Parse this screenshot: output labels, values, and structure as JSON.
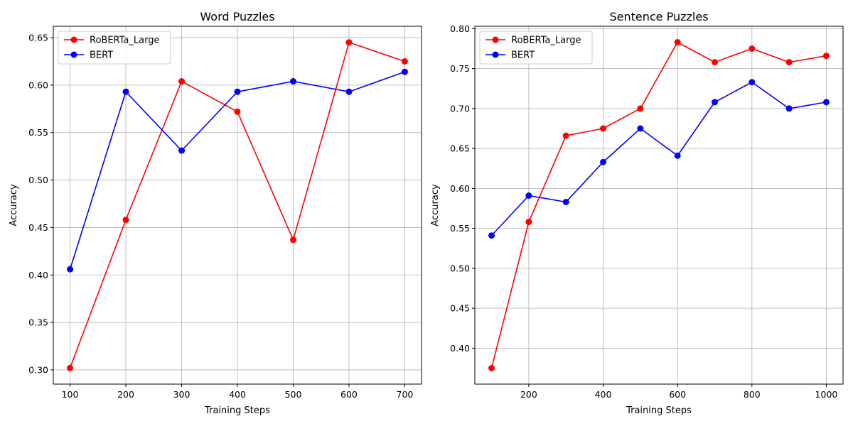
{
  "chart_data": [
    {
      "type": "line",
      "title": "Word Puzzles",
      "xlabel": "Training Steps",
      "ylabel": "Accuracy",
      "x": [
        100,
        200,
        300,
        400,
        500,
        600,
        700
      ],
      "xlim": [
        70,
        730
      ],
      "ylim": [
        0.285,
        0.662
      ],
      "xticks": [
        100,
        200,
        300,
        400,
        500,
        600,
        700
      ],
      "yticks": [
        0.3,
        0.35,
        0.4,
        0.45,
        0.5,
        0.55,
        0.6,
        0.65
      ],
      "ytick_decimals": 2,
      "grid": true,
      "legend_position": "top-left",
      "series": [
        {
          "name": "RoBERTa_Large",
          "color": "#ff0000",
          "marker": "circle",
          "values": [
            0.302,
            0.458,
            0.604,
            0.572,
            0.437,
            0.645,
            0.625
          ]
        },
        {
          "name": "BERT",
          "color": "#0000ff",
          "marker": "circle",
          "values": [
            0.406,
            0.593,
            0.531,
            0.593,
            0.604,
            0.593,
            0.614
          ]
        }
      ]
    },
    {
      "type": "line",
      "title": "Sentence Puzzles",
      "xlabel": "Training Steps",
      "ylabel": "Accuracy",
      "x": [
        100,
        200,
        300,
        400,
        500,
        600,
        700,
        800,
        900,
        1000
      ],
      "xlim": [
        55,
        1045
      ],
      "ylim": [
        0.355,
        0.803
      ],
      "xticks": [
        200,
        400,
        600,
        800,
        1000
      ],
      "yticks": [
        0.4,
        0.45,
        0.5,
        0.55,
        0.6,
        0.65,
        0.7,
        0.75,
        0.8
      ],
      "ytick_decimals": 2,
      "grid": true,
      "legend_position": "top-left",
      "series": [
        {
          "name": "RoBERTa_Large",
          "color": "#ff0000",
          "marker": "circle",
          "values": [
            0.375,
            0.558,
            0.666,
            0.675,
            0.7,
            0.783,
            0.758,
            0.775,
            0.758,
            0.766
          ]
        },
        {
          "name": "BERT",
          "color": "#0000ff",
          "marker": "circle",
          "values": [
            0.541,
            0.591,
            0.583,
            0.633,
            0.675,
            0.641,
            0.708,
            0.733,
            0.7,
            0.708
          ]
        }
      ]
    }
  ],
  "colors": {
    "grid": "#b0b0b0",
    "axes": "#000000",
    "legend_border": "#cccccc"
  }
}
